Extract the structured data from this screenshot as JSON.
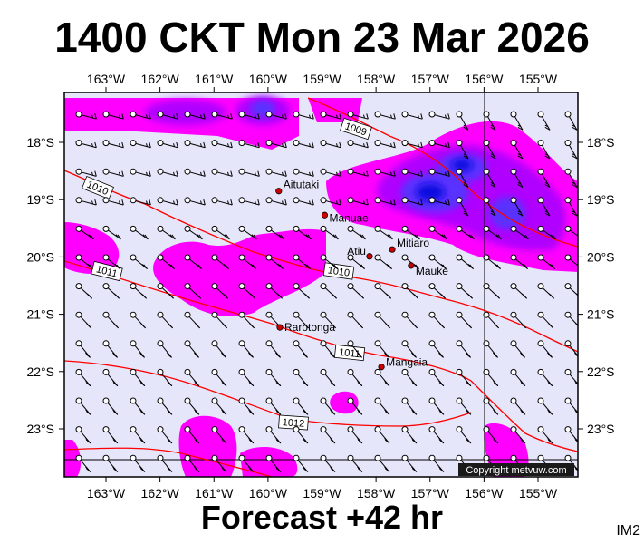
{
  "title": "1400 CKT Mon 23 Mar 2026",
  "footer": "Forecast +42 hr",
  "image_id": "IM2",
  "copyright": "Copyright metvuw.com",
  "lon_labels": [
    "163°W",
    "162°W",
    "161°W",
    "160°W",
    "159°W",
    "158°W",
    "157°W",
    "156°W",
    "155°W"
  ],
  "lat_labels": [
    "18°S",
    "19°S",
    "20°S",
    "21°S",
    "22°S",
    "23°S"
  ],
  "places": [
    {
      "name": "Aitutaki",
      "lon": -159.8,
      "lat": -18.85
    },
    {
      "name": "Manuae",
      "lon": -158.95,
      "lat": -19.27
    },
    {
      "name": "Atiu",
      "lon": -158.12,
      "lat": -19.99
    },
    {
      "name": "Mitiaro",
      "lon": -157.7,
      "lat": -19.87
    },
    {
      "name": "Mauke",
      "lon": -157.35,
      "lat": -20.15
    },
    {
      "name": "Rarotonga",
      "lon": -159.78,
      "lat": -21.23
    },
    {
      "name": "Mangaia",
      "lon": -157.9,
      "lat": -21.92
    }
  ],
  "isobar_labels": [
    "1009",
    "1010",
    "1010",
    "1011",
    "1011",
    "1012"
  ],
  "colors": {
    "background": "#e6e6fa",
    "rain_light": "#ff00ff",
    "rain_mid": "#c000ff",
    "rain_heavy": "#6020ff",
    "rain_core": "#0000ff",
    "isobar": "#ff0000",
    "place_dot": "#cc0000"
  }
}
